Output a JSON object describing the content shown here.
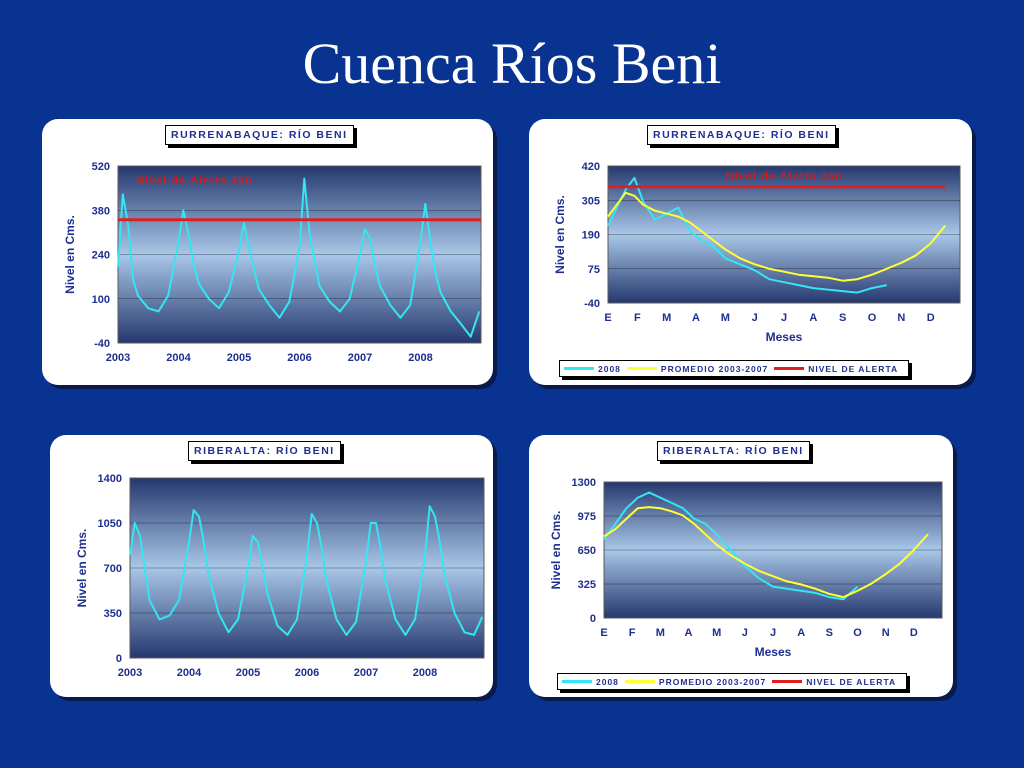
{
  "slide": {
    "title": "Cuenca Ríos Beni"
  },
  "colors": {
    "background": "#083390",
    "cyan": "#33e6f2",
    "yellow": "#ffff33",
    "alert_red": "#dd1f1f",
    "text": "#1f2f8f"
  },
  "chart_data": [
    {
      "type": "line",
      "title": "RURRENABAQUE: RÍO BENI",
      "ylabel": "Nivel en Cms.",
      "xlabel": "",
      "ylim": [
        -40,
        520
      ],
      "yticks": [
        "520",
        "380",
        "240",
        "100",
        "-40"
      ],
      "xticks": [
        "2003",
        "2004",
        "2005",
        "2006",
        "2007",
        "2008"
      ],
      "annotation": "Nivel  de Alerta 350",
      "alert_level": 350,
      "series": [
        {
          "color": "#33e6f2",
          "x": [
            2003.0,
            2003.08,
            2003.17,
            2003.25,
            2003.33,
            2003.5,
            2003.67,
            2003.83,
            2004.0,
            2004.08,
            2004.17,
            2004.25,
            2004.33,
            2004.5,
            2004.67,
            2004.83,
            2005.0,
            2005.08,
            2005.17,
            2005.25,
            2005.33,
            2005.5,
            2005.67,
            2005.83,
            2006.0,
            2006.08,
            2006.17,
            2006.25,
            2006.33,
            2006.5,
            2006.67,
            2006.83,
            2007.0,
            2007.08,
            2007.17,
            2007.25,
            2007.33,
            2007.5,
            2007.67,
            2007.83,
            2008.0,
            2008.08,
            2008.17,
            2008.25,
            2008.33,
            2008.5,
            2008.67,
            2008.83,
            2008.97
          ],
          "y": [
            200,
            430,
            330,
            160,
            110,
            70,
            60,
            110,
            280,
            380,
            300,
            210,
            150,
            100,
            70,
            120,
            250,
            340,
            260,
            190,
            130,
            80,
            40,
            90,
            260,
            480,
            300,
            220,
            140,
            90,
            60,
            100,
            240,
            320,
            290,
            200,
            140,
            80,
            40,
            80,
            280,
            400,
            270,
            180,
            120,
            60,
            20,
            -20,
            60
          ]
        }
      ]
    },
    {
      "type": "line",
      "title": "RURRENABAQUE: RÍO BENI",
      "ylabel": "Nivel en Cms.",
      "xlabel": "Meses",
      "ylim": [
        -40,
        420
      ],
      "yticks": [
        "420",
        "305",
        "190",
        "75",
        "-40"
      ],
      "xticks": [
        "E",
        "F",
        "M",
        "A",
        "M",
        "J",
        "J",
        "A",
        "S",
        "O",
        "N",
        "D"
      ],
      "annotation": "Nivel de Alerta 350",
      "series": [
        {
          "name": "2008",
          "color": "#33e6f2",
          "x": [
            0,
            0.3,
            0.6,
            0.9,
            1.2,
            1.6,
            2.0,
            2.4,
            2.8,
            3.2,
            3.6,
            4.0,
            4.5,
            5.0,
            5.5,
            6.0,
            6.5,
            7.0,
            7.5,
            8.0,
            8.5,
            9.0,
            9.5
          ],
          "y": [
            220,
            280,
            340,
            380,
            300,
            240,
            260,
            280,
            200,
            170,
            150,
            110,
            90,
            70,
            40,
            30,
            20,
            10,
            5,
            0,
            -5,
            10,
            20
          ]
        },
        {
          "name": "PROMEDIO 2003-2007",
          "color": "#ffff33",
          "x": [
            0,
            0.3,
            0.6,
            0.9,
            1.2,
            1.6,
            2.0,
            2.4,
            2.8,
            3.2,
            3.6,
            4.0,
            4.5,
            5.0,
            5.5,
            6.0,
            6.5,
            7.0,
            7.5,
            8.0,
            8.5,
            9.0,
            9.5,
            10.0,
            10.5,
            11.0,
            11.5
          ],
          "y": [
            250,
            290,
            330,
            320,
            290,
            270,
            260,
            250,
            230,
            200,
            170,
            140,
            110,
            90,
            75,
            65,
            55,
            50,
            45,
            35,
            40,
            55,
            75,
            95,
            120,
            160,
            220
          ]
        },
        {
          "name": "NIVEL DE ALERTA",
          "color": "#dd1f1f",
          "x": [
            0,
            11.5
          ],
          "y": [
            350,
            350
          ]
        }
      ]
    },
    {
      "type": "line",
      "title": "RIBERALTA: RÍO BENI",
      "ylabel": "Nivel en Cms.",
      "xlabel": "",
      "ylim": [
        0,
        1400
      ],
      "yticks": [
        "1400",
        "1050",
        "700",
        "350",
        "0"
      ],
      "xticks": [
        "2003",
        "2004",
        "2005",
        "2006",
        "2007",
        "2008"
      ],
      "series": [
        {
          "color": "#33e6f2",
          "x": [
            2003.0,
            2003.08,
            2003.17,
            2003.25,
            2003.33,
            2003.5,
            2003.67,
            2003.83,
            2004.0,
            2004.08,
            2004.17,
            2004.25,
            2004.33,
            2004.5,
            2004.67,
            2004.83,
            2005.0,
            2005.08,
            2005.17,
            2005.25,
            2005.33,
            2005.5,
            2005.67,
            2005.83,
            2006.0,
            2006.08,
            2006.17,
            2006.25,
            2006.33,
            2006.5,
            2006.67,
            2006.83,
            2007.0,
            2007.08,
            2007.17,
            2007.25,
            2007.33,
            2007.5,
            2007.67,
            2007.83,
            2008.0,
            2008.08,
            2008.17,
            2008.25,
            2008.33,
            2008.5,
            2008.67,
            2008.83,
            2008.97
          ],
          "y": [
            800,
            1050,
            950,
            700,
            450,
            300,
            330,
            450,
            900,
            1150,
            1100,
            900,
            650,
            350,
            200,
            300,
            700,
            950,
            900,
            700,
            500,
            250,
            180,
            300,
            800,
            1120,
            1050,
            850,
            600,
            300,
            180,
            280,
            750,
            1050,
            1050,
            850,
            600,
            300,
            180,
            300,
            800,
            1180,
            1100,
            900,
            650,
            350,
            200,
            180,
            320
          ]
        }
      ]
    },
    {
      "type": "line",
      "title": "RIBERALTA: RÍO BENI",
      "ylabel": "Nivel en Cms.",
      "xlabel": "Meses",
      "ylim": [
        0,
        1300
      ],
      "yticks": [
        "1300",
        "975",
        "650",
        "325",
        "0"
      ],
      "xticks": [
        "E",
        "F",
        "M",
        "A",
        "M",
        "J",
        "J",
        "A",
        "S",
        "O",
        "N",
        "D"
      ],
      "series": [
        {
          "name": "2008",
          "color": "#33e6f2",
          "x": [
            0,
            0.4,
            0.8,
            1.2,
            1.6,
            2.0,
            2.4,
            2.8,
            3.2,
            3.6,
            4.0,
            4.5,
            5.0,
            5.5,
            6.0,
            6.5,
            7.0,
            7.5,
            8.0,
            8.5,
            9.0
          ],
          "y": [
            750,
            900,
            1050,
            1150,
            1200,
            1150,
            1100,
            1050,
            950,
            900,
            800,
            650,
            500,
            380,
            300,
            280,
            260,
            240,
            200,
            180,
            300
          ]
        },
        {
          "name": "PROMEDIO 2003-2007",
          "color": "#ffff33",
          "x": [
            0,
            0.4,
            0.8,
            1.2,
            1.6,
            2.0,
            2.4,
            2.8,
            3.2,
            3.6,
            4.0,
            4.5,
            5.0,
            5.5,
            6.0,
            6.5,
            7.0,
            7.5,
            8.0,
            8.5,
            9.0,
            9.5,
            10.0,
            10.5,
            11.0,
            11.5
          ],
          "y": [
            780,
            850,
            950,
            1050,
            1060,
            1050,
            1020,
            980,
            900,
            800,
            700,
            600,
            520,
            450,
            400,
            350,
            320,
            280,
            230,
            200,
            260,
            330,
            420,
            520,
            650,
            800
          ]
        },
        {
          "name": "NIVEL DE ALERTA",
          "color": "#dd1f1f",
          "x": [],
          "y": []
        }
      ]
    }
  ]
}
